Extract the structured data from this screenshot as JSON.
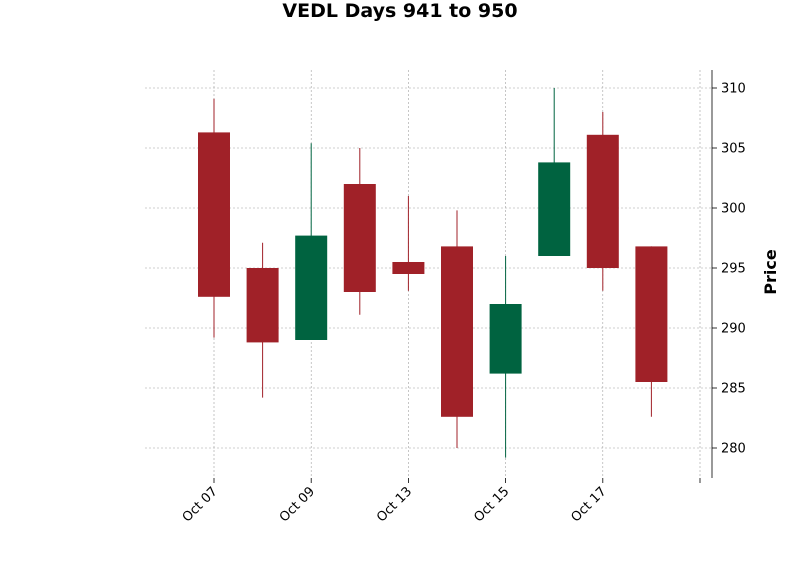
{
  "chart_data": {
    "type": "candlestick",
    "title": "VEDL Days 941 to 950",
    "ylabel": "Price",
    "ylim": [
      277.5,
      311.5
    ],
    "yticks": [
      280,
      285,
      290,
      295,
      300,
      305,
      310
    ],
    "xticks": [
      "Oct 07",
      "Oct 09",
      "Oct 13",
      "Oct 15",
      "Oct 17",
      ""
    ],
    "grid": true,
    "up_color": "#006340",
    "down_color": "#a02128",
    "candles": [
      {
        "open": 306.3,
        "high": 309.1,
        "low": 289.2,
        "close": 292.6
      },
      {
        "open": 295.0,
        "high": 297.1,
        "low": 284.2,
        "close": 288.8
      },
      {
        "open": 289.0,
        "high": 305.4,
        "low": 289.0,
        "close": 297.7
      },
      {
        "open": 302.0,
        "high": 305.0,
        "low": 291.1,
        "close": 293.0
      },
      {
        "open": 295.5,
        "high": 301.0,
        "low": 293.1,
        "close": 294.5
      },
      {
        "open": 296.8,
        "high": 299.8,
        "low": 280.0,
        "close": 282.6
      },
      {
        "open": 286.2,
        "high": 296.0,
        "low": 279.2,
        "close": 292.0
      },
      {
        "open": 296.0,
        "high": 310.0,
        "low": 296.0,
        "close": 303.8
      },
      {
        "open": 306.1,
        "high": 308.0,
        "low": 293.1,
        "close": 295.0
      },
      {
        "open": 296.8,
        "high": 296.8,
        "low": 282.6,
        "close": 285.5
      }
    ]
  }
}
